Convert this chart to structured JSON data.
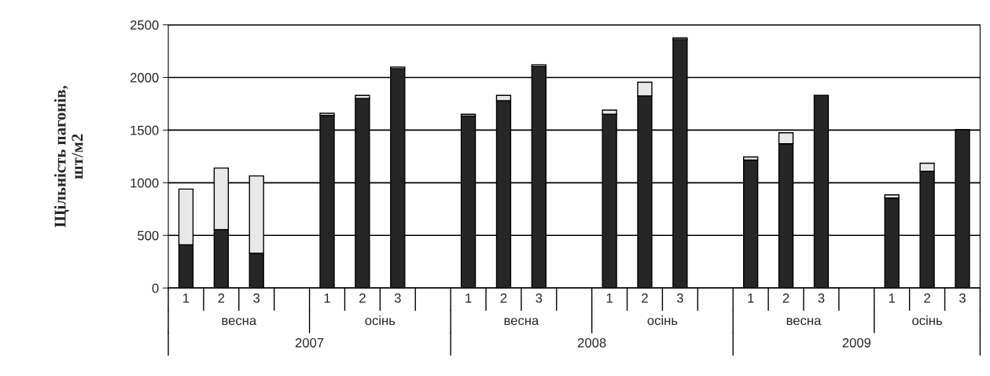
{
  "chart_data": {
    "type": "bar",
    "stacked": true,
    "ylabel": "Щільність пагонів,\nшт/м2",
    "categories": [
      "1",
      "2",
      "3",
      null,
      "1",
      "2",
      "3",
      null,
      "1",
      "2",
      "3",
      null,
      "1",
      "2",
      "3",
      null,
      "1",
      "2",
      "3",
      null,
      "1",
      "2",
      "3"
    ],
    "series": [
      {
        "color": "#262626",
        "values": [
          410,
          555,
          330,
          null,
          1640,
          1800,
          2085,
          null,
          1635,
          1780,
          2105,
          null,
          1650,
          1825,
          2360,
          null,
          1215,
          1370,
          1830,
          null,
          855,
          1110,
          1505
        ]
      },
      {
        "color": "#e8e8e8",
        "values": [
          530,
          585,
          735,
          null,
          20,
          30,
          15,
          null,
          15,
          50,
          15,
          null,
          40,
          130,
          15,
          null,
          30,
          105,
          null,
          null,
          30,
          75,
          null
        ]
      }
    ],
    "annotations": [
      "весна",
      "осінь",
      "весна",
      "осінь",
      "весна",
      "осінь",
      "2007",
      "2008",
      "2009"
    ],
    "ylim": [
      0,
      2500
    ],
    "yticks": [
      0,
      500,
      1000,
      1500,
      2000,
      2500
    ],
    "grid": "y"
  }
}
